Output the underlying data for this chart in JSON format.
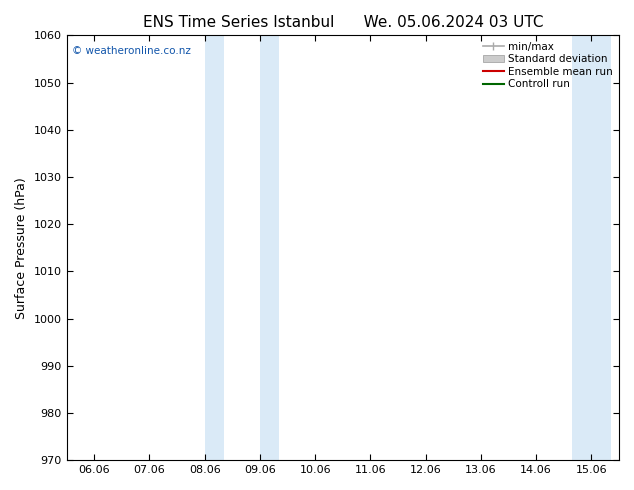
{
  "title_left": "ENS Time Series Istanbul",
  "title_right": "We. 05.06.2024 03 UTC",
  "ylabel": "Surface Pressure (hPa)",
  "ylim": [
    970,
    1060
  ],
  "yticks": [
    970,
    980,
    990,
    1000,
    1010,
    1020,
    1030,
    1040,
    1050,
    1060
  ],
  "xtick_labels": [
    "06.06",
    "07.06",
    "08.06",
    "09.06",
    "10.06",
    "11.06",
    "12.06",
    "13.06",
    "14.06",
    "15.06"
  ],
  "shaded_bands": [
    {
      "xmin": 2.0,
      "xmax": 2.35
    },
    {
      "xmin": 3.0,
      "xmax": 3.35
    },
    {
      "xmin": 8.65,
      "xmax": 9.0
    },
    {
      "xmin": 9.0,
      "xmax": 9.35
    }
  ],
  "band_color": "#daeaf7",
  "band_edge_color": "#b8d4e8",
  "watermark": "© weatheronline.co.nz",
  "legend_entries": [
    {
      "label": "min/max",
      "color": "#aaaaaa",
      "lw": 1.2,
      "style": "minmax"
    },
    {
      "label": "Standard deviation",
      "color": "#cccccc",
      "lw": 8,
      "style": "band"
    },
    {
      "label": "Ensemble mean run",
      "color": "#cc0000",
      "lw": 1.5,
      "style": "line"
    },
    {
      "label": "Controll run",
      "color": "#006600",
      "lw": 1.5,
      "style": "line"
    }
  ],
  "background_color": "#ffffff",
  "plot_background": "#ffffff",
  "title_fontsize": 11,
  "tick_fontsize": 8,
  "ylabel_fontsize": 9
}
